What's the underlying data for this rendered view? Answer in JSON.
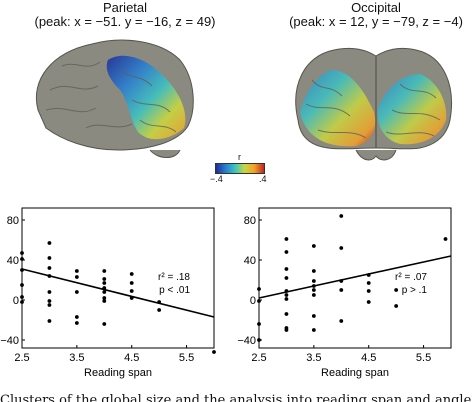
{
  "figure": {
    "panels": [
      {
        "id": "parietal",
        "title": "Parietal",
        "peak": "(peak: x = −51. y = −16, z = 49)"
      },
      {
        "id": "occipital",
        "title": "Occipital",
        "peak": "(peak: x = 12, y = −79, z = −4)"
      }
    ],
    "colorbar": {
      "label": "r",
      "min_label": "−.4",
      "max_label": ".4",
      "colors": [
        "#1d2d9a",
        "#2a7fd0",
        "#3fc3c0",
        "#c9d640",
        "#f2a02a",
        "#c0271f"
      ]
    },
    "caption_fragment": "Clusters of the global size and the analysis into reading span and angle in an a..."
  },
  "chart_data": [
    {
      "type": "scatter",
      "panel": "parietal",
      "xlabel": "Reading span",
      "ylabel": "Relative change (%)",
      "xlim": [
        2.5,
        6.0
      ],
      "ylim": [
        -48,
        92
      ],
      "xticks": [
        "2.5",
        "3.5",
        "4.5",
        "5.5"
      ],
      "yticks": [
        "−40",
        "0",
        "40",
        "80"
      ],
      "annotations": [
        "r² = .18",
        "p < .01"
      ],
      "points": [
        [
          2.5,
          47
        ],
        [
          2.5,
          41
        ],
        [
          2.5,
          30
        ],
        [
          2.5,
          15
        ],
        [
          2.5,
          3
        ],
        [
          2.5,
          -2
        ],
        [
          3.0,
          57
        ],
        [
          3.0,
          42
        ],
        [
          3.0,
          32
        ],
        [
          3.0,
          24
        ],
        [
          3.0,
          8
        ],
        [
          3.0,
          -1
        ],
        [
          3.0,
          -5
        ],
        [
          3.0,
          -21
        ],
        [
          3.5,
          29
        ],
        [
          3.5,
          23
        ],
        [
          3.5,
          8
        ],
        [
          3.5,
          -17
        ],
        [
          3.5,
          -23
        ],
        [
          4.0,
          29
        ],
        [
          4.0,
          21
        ],
        [
          4.0,
          17
        ],
        [
          4.0,
          12
        ],
        [
          4.0,
          8
        ],
        [
          4.0,
          2
        ],
        [
          4.0,
          -1
        ],
        [
          4.0,
          -24
        ],
        [
          4.5,
          26
        ],
        [
          4.5,
          17
        ],
        [
          4.5,
          9
        ],
        [
          4.5,
          2
        ],
        [
          5.0,
          -2
        ],
        [
          5.0,
          -10
        ],
        [
          6.0,
          -52
        ]
      ],
      "trendline": {
        "x": [
          2.5,
          6.0
        ],
        "y": [
          31,
          -17
        ]
      }
    },
    {
      "type": "scatter",
      "panel": "occipital",
      "xlabel": "Reading span",
      "ylabel": "Relative change (%)",
      "xlim": [
        2.5,
        6.0
      ],
      "ylim": [
        -48,
        92
      ],
      "xticks": [
        "2.5",
        "3.5",
        "4.5",
        "5.5"
      ],
      "yticks": [
        "−40",
        "0",
        "40",
        "80"
      ],
      "annotations": [
        "r² = .07",
        "p > .1"
      ],
      "points": [
        [
          2.5,
          11
        ],
        [
          2.5,
          -1
        ],
        [
          2.5,
          -24
        ],
        [
          2.5,
          -40
        ],
        [
          3.0,
          61
        ],
        [
          3.0,
          48
        ],
        [
          3.0,
          31
        ],
        [
          3.0,
          22
        ],
        [
          3.0,
          9
        ],
        [
          3.0,
          5
        ],
        [
          3.0,
          1
        ],
        [
          3.0,
          -14
        ],
        [
          3.0,
          -28
        ],
        [
          3.0,
          -30
        ],
        [
          3.5,
          54
        ],
        [
          3.5,
          29
        ],
        [
          3.5,
          19
        ],
        [
          3.5,
          14
        ],
        [
          3.5,
          10
        ],
        [
          3.5,
          5
        ],
        [
          3.5,
          -16
        ],
        [
          3.5,
          -30
        ],
        [
          4.0,
          84
        ],
        [
          4.0,
          52
        ],
        [
          4.0,
          19
        ],
        [
          4.0,
          10
        ],
        [
          4.0,
          -21
        ],
        [
          4.5,
          25
        ],
        [
          4.5,
          17
        ],
        [
          4.5,
          9
        ],
        [
          4.5,
          -2
        ],
        [
          5.0,
          10
        ],
        [
          5.0,
          -6
        ],
        [
          5.9,
          61
        ]
      ],
      "trendline": {
        "x": [
          2.5,
          6.0
        ],
        "y": [
          2,
          44
        ]
      }
    }
  ]
}
